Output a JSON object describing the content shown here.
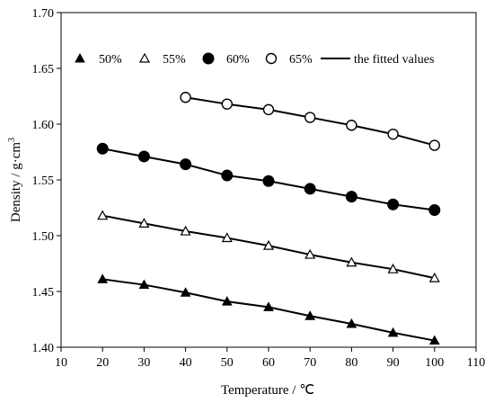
{
  "chart_data": {
    "type": "scatter",
    "title": "",
    "xlabel": "Temperature / ℃",
    "ylabel": "Density / g·cm",
    "ylabel_superscript": "3",
    "xlim": [
      10,
      110
    ],
    "ylim": [
      1.4,
      1.7
    ],
    "xticks": [
      "10",
      "20",
      "30",
      "40",
      "50",
      "60",
      "70",
      "80",
      "90",
      "100",
      "110"
    ],
    "yticks": [
      "1.40",
      "1.45",
      "1.50",
      "1.55",
      "1.60",
      "1.65",
      "1.70"
    ],
    "grid": false,
    "legend_position": "top",
    "series": [
      {
        "name": "50%",
        "marker": "filled-triangle",
        "x": [
          20,
          30,
          40,
          50,
          60,
          70,
          80,
          90,
          100
        ],
        "y": [
          1.461,
          1.456,
          1.449,
          1.441,
          1.436,
          1.428,
          1.421,
          1.413,
          1.406
        ]
      },
      {
        "name": "55%",
        "marker": "open-triangle",
        "x": [
          20,
          30,
          40,
          50,
          60,
          70,
          80,
          90,
          100
        ],
        "y": [
          1.518,
          1.511,
          1.504,
          1.498,
          1.491,
          1.483,
          1.476,
          1.47,
          1.462
        ]
      },
      {
        "name": "60%",
        "marker": "filled-circle",
        "x": [
          20,
          30,
          40,
          50,
          60,
          70,
          80,
          90,
          100
        ],
        "y": [
          1.578,
          1.571,
          1.564,
          1.554,
          1.549,
          1.542,
          1.535,
          1.528,
          1.523
        ]
      },
      {
        "name": "65%",
        "marker": "open-circle",
        "x": [
          40,
          50,
          60,
          70,
          80,
          90,
          100
        ],
        "y": [
          1.624,
          1.618,
          1.613,
          1.606,
          1.599,
          1.591,
          1.581
        ]
      }
    ],
    "fit_legend_label": "the fitted values",
    "colors": {
      "marks": "#000000",
      "background": "#ffffff"
    }
  }
}
